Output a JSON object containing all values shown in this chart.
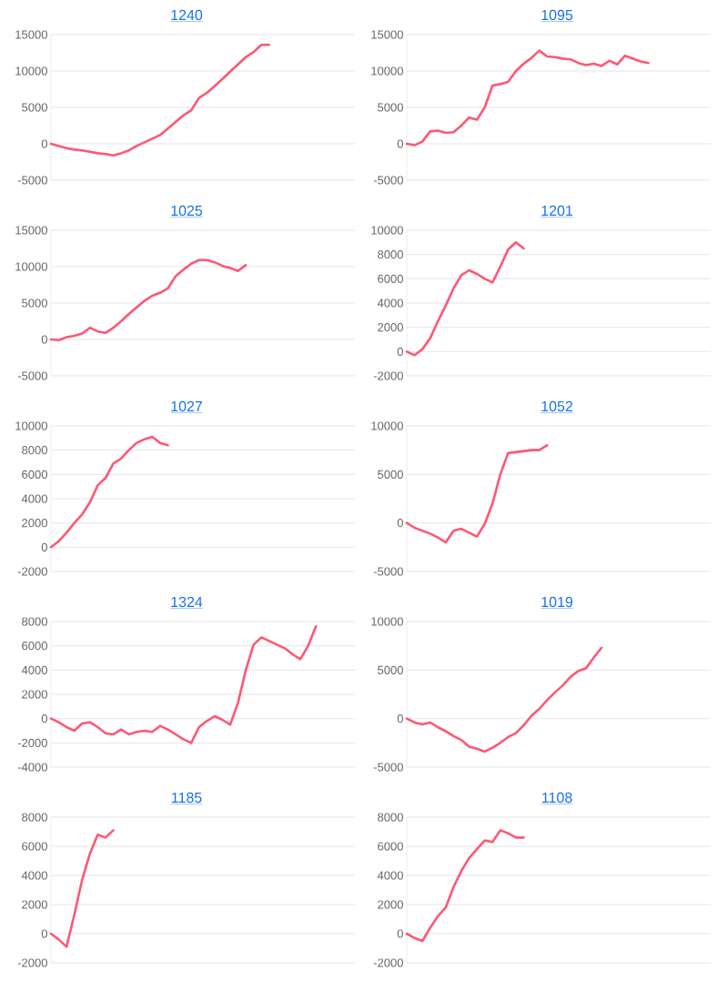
{
  "chart_data": [
    {
      "type": "line",
      "title": "1240",
      "color": "#ff5773",
      "grid": "y",
      "ylim": [
        -5000,
        15000
      ],
      "yticks": [
        -5000,
        0,
        5000,
        10000,
        15000
      ],
      "categories": [
        null,
        null,
        null,
        null,
        null,
        null,
        null,
        null,
        null,
        null,
        null,
        null,
        null,
        null,
        null,
        null,
        null,
        null,
        null,
        null,
        null,
        null,
        null,
        null,
        null,
        null,
        null,
        null,
        null,
        null,
        null,
        null,
        null,
        null,
        null,
        null,
        null,
        null,
        null,
        null
      ],
      "values": [
        0,
        -300,
        -600,
        -800,
        -900,
        -1100,
        -1300,
        -1400,
        -1600,
        -1300,
        -900,
        -300,
        200,
        700,
        1200,
        2100,
        3000,
        3900,
        4600,
        6300,
        7000,
        7900,
        8900,
        9900,
        10900,
        11900,
        12600,
        13600,
        13600,
        null,
        null,
        null,
        null,
        null,
        null,
        null,
        null,
        null,
        null,
        null
      ]
    },
    {
      "type": "line",
      "title": "1095",
      "color": "#ff5773",
      "grid": "y",
      "ylim": [
        -5000,
        15000
      ],
      "yticks": [
        -5000,
        0,
        5000,
        10000,
        15000
      ],
      "categories": [
        null,
        null,
        null,
        null,
        null,
        null,
        null,
        null,
        null,
        null,
        null,
        null,
        null,
        null,
        null,
        null,
        null,
        null,
        null,
        null,
        null,
        null,
        null,
        null,
        null,
        null,
        null,
        null,
        null,
        null,
        null,
        null,
        null,
        null,
        null,
        null,
        null,
        null,
        null,
        null
      ],
      "values": [
        0,
        -200,
        300,
        1700,
        1800,
        1500,
        1600,
        2500,
        3600,
        3300,
        5000,
        8000,
        8200,
        8500,
        10000,
        11000,
        11800,
        12800,
        12000,
        11900,
        11700,
        11600,
        11100,
        10800,
        11000,
        10700,
        11400,
        10900,
        12100,
        11700,
        11300,
        11100,
        null,
        null,
        null,
        null,
        null,
        null,
        null,
        null
      ]
    },
    {
      "type": "line",
      "title": "1025",
      "color": "#ff5773",
      "grid": "y",
      "ylim": [
        -5000,
        15000
      ],
      "yticks": [
        -5000,
        0,
        5000,
        10000,
        15000
      ],
      "categories": [
        null,
        null,
        null,
        null,
        null,
        null,
        null,
        null,
        null,
        null,
        null,
        null,
        null,
        null,
        null,
        null,
        null,
        null,
        null,
        null,
        null,
        null,
        null,
        null,
        null,
        null,
        null,
        null,
        null,
        null,
        null,
        null,
        null,
        null,
        null,
        null,
        null,
        null,
        null,
        null
      ],
      "values": [
        0,
        -100,
        300,
        500,
        800,
        1600,
        1100,
        900,
        1600,
        2500,
        3500,
        4400,
        5300,
        6000,
        6400,
        7000,
        8700,
        9600,
        10400,
        10900,
        10900,
        10600,
        10100,
        9800,
        9400,
        10200,
        null,
        null,
        null,
        null,
        null,
        null,
        null,
        null,
        null,
        null,
        null,
        null,
        null,
        null
      ]
    },
    {
      "type": "line",
      "title": "1201",
      "color": "#ff5773",
      "grid": "y",
      "ylim": [
        -2000,
        10000
      ],
      "yticks": [
        -2000,
        0,
        2000,
        4000,
        6000,
        8000,
        10000
      ],
      "categories": [
        null,
        null,
        null,
        null,
        null,
        null,
        null,
        null,
        null,
        null,
        null,
        null,
        null,
        null,
        null,
        null,
        null,
        null,
        null,
        null,
        null,
        null,
        null,
        null,
        null,
        null,
        null,
        null,
        null,
        null,
        null,
        null,
        null,
        null,
        null,
        null,
        null,
        null,
        null,
        null
      ],
      "values": [
        0,
        -300,
        200,
        1100,
        2500,
        3800,
        5200,
        6300,
        6700,
        6400,
        6000,
        5700,
        7000,
        8400,
        9000,
        8500,
        null,
        null,
        null,
        null,
        null,
        null,
        null,
        null,
        null,
        null,
        null,
        null,
        null,
        null,
        null,
        null,
        null,
        null,
        null,
        null,
        null,
        null,
        null,
        null
      ]
    },
    {
      "type": "line",
      "title": "1027",
      "color": "#ff5773",
      "grid": "y",
      "ylim": [
        -2000,
        10000
      ],
      "yticks": [
        -2000,
        0,
        2000,
        4000,
        6000,
        8000,
        10000
      ],
      "categories": [
        null,
        null,
        null,
        null,
        null,
        null,
        null,
        null,
        null,
        null,
        null,
        null,
        null,
        null,
        null,
        null,
        null,
        null,
        null,
        null,
        null,
        null,
        null,
        null,
        null,
        null,
        null,
        null,
        null,
        null,
        null,
        null,
        null,
        null,
        null,
        null,
        null,
        null,
        null,
        null
      ],
      "values": [
        0,
        500,
        1200,
        2000,
        2700,
        3700,
        5100,
        5700,
        6900,
        7300,
        8000,
        8600,
        8900,
        9100,
        8600,
        8400,
        null,
        null,
        null,
        null,
        null,
        null,
        null,
        null,
        null,
        null,
        null,
        null,
        null,
        null,
        null,
        null,
        null,
        null,
        null,
        null,
        null,
        null,
        null,
        null
      ]
    },
    {
      "type": "line",
      "title": "1052",
      "color": "#ff5773",
      "grid": "y",
      "ylim": [
        -5000,
        10000
      ],
      "yticks": [
        -5000,
        0,
        5000,
        10000
      ],
      "categories": [
        null,
        null,
        null,
        null,
        null,
        null,
        null,
        null,
        null,
        null,
        null,
        null,
        null,
        null,
        null,
        null,
        null,
        null,
        null,
        null,
        null,
        null,
        null,
        null,
        null,
        null,
        null,
        null,
        null,
        null,
        null,
        null,
        null,
        null,
        null,
        null,
        null,
        null,
        null,
        null
      ],
      "values": [
        0,
        -500,
        -800,
        -1100,
        -1500,
        -2000,
        -800,
        -600,
        -1000,
        -1400,
        -100,
        2000,
        5000,
        7200,
        7300,
        7400,
        7500,
        7500,
        8000,
        null,
        null,
        null,
        null,
        null,
        null,
        null,
        null,
        null,
        null,
        null,
        null,
        null,
        null,
        null,
        null,
        null,
        null,
        null,
        null,
        null
      ]
    },
    {
      "type": "line",
      "title": "1324",
      "color": "#ff5773",
      "grid": "y",
      "ylim": [
        -4000,
        8000
      ],
      "yticks": [
        -4000,
        -2000,
        0,
        2000,
        4000,
        6000,
        8000
      ],
      "categories": [
        null,
        null,
        null,
        null,
        null,
        null,
        null,
        null,
        null,
        null,
        null,
        null,
        null,
        null,
        null,
        null,
        null,
        null,
        null,
        null,
        null,
        null,
        null,
        null,
        null,
        null,
        null,
        null,
        null,
        null,
        null,
        null,
        null,
        null,
        null,
        null,
        null,
        null,
        null,
        null
      ],
      "values": [
        0,
        -300,
        -700,
        -1000,
        -400,
        -300,
        -700,
        -1200,
        -1300,
        -900,
        -1300,
        -1100,
        -1000,
        -1100,
        -600,
        -900,
        -1300,
        -1700,
        -2000,
        -700,
        -200,
        200,
        -100,
        -500,
        1300,
        4000,
        6100,
        6700,
        6400,
        6100,
        5800,
        5300,
        4900,
        6000,
        7600,
        null,
        null,
        null,
        null,
        null
      ]
    },
    {
      "type": "line",
      "title": "1019",
      "color": "#ff5773",
      "grid": "y",
      "ylim": [
        -5000,
        10000
      ],
      "yticks": [
        -5000,
        0,
        5000,
        10000
      ],
      "categories": [
        null,
        null,
        null,
        null,
        null,
        null,
        null,
        null,
        null,
        null,
        null,
        null,
        null,
        null,
        null,
        null,
        null,
        null,
        null,
        null,
        null,
        null,
        null,
        null,
        null,
        null,
        null,
        null,
        null,
        null,
        null,
        null,
        null,
        null,
        null,
        null,
        null,
        null,
        null,
        null
      ],
      "values": [
        0,
        -400,
        -600,
        -400,
        -900,
        -1300,
        -1800,
        -2200,
        -2900,
        -3100,
        -3400,
        -3000,
        -2500,
        -1900,
        -1500,
        -700,
        300,
        1000,
        1900,
        2700,
        3400,
        4300,
        4900,
        5200,
        6300,
        7300,
        null,
        null,
        null,
        null,
        null,
        null,
        null,
        null,
        null,
        null,
        null,
        null,
        null,
        null
      ]
    },
    {
      "type": "line",
      "title": "1185",
      "color": "#ff5773",
      "grid": "y",
      "ylim": [
        -2000,
        8000
      ],
      "yticks": [
        -2000,
        0,
        2000,
        4000,
        6000,
        8000
      ],
      "categories": [
        null,
        null,
        null,
        null,
        null,
        null,
        null,
        null,
        null,
        null,
        null,
        null,
        null,
        null,
        null,
        null,
        null,
        null,
        null,
        null,
        null,
        null,
        null,
        null,
        null,
        null,
        null,
        null,
        null,
        null,
        null,
        null,
        null,
        null,
        null,
        null,
        null,
        null,
        null,
        null
      ],
      "values": [
        0,
        -400,
        -900,
        1300,
        3700,
        5500,
        6800,
        6600,
        7100,
        null,
        null,
        null,
        null,
        null,
        null,
        null,
        null,
        null,
        null,
        null,
        null,
        null,
        null,
        null,
        null,
        null,
        null,
        null,
        null,
        null,
        null,
        null,
        null,
        null,
        null,
        null,
        null,
        null,
        null,
        null
      ]
    },
    {
      "type": "line",
      "title": "1108",
      "color": "#ff5773",
      "grid": "y",
      "ylim": [
        -2000,
        8000
      ],
      "yticks": [
        -2000,
        0,
        2000,
        4000,
        6000,
        8000
      ],
      "categories": [
        null,
        null,
        null,
        null,
        null,
        null,
        null,
        null,
        null,
        null,
        null,
        null,
        null,
        null,
        null,
        null,
        null,
        null,
        null,
        null,
        null,
        null,
        null,
        null,
        null,
        null,
        null,
        null,
        null,
        null,
        null,
        null,
        null,
        null,
        null,
        null,
        null,
        null,
        null,
        null
      ],
      "values": [
        0,
        -300,
        -500,
        400,
        1200,
        1800,
        3200,
        4300,
        5200,
        5800,
        6400,
        6300,
        7100,
        6900,
        6600,
        6600,
        null,
        null,
        null,
        null,
        null,
        null,
        null,
        null,
        null,
        null,
        null,
        null,
        null,
        null,
        null,
        null,
        null,
        null,
        null,
        null,
        null,
        null,
        null,
        null
      ]
    }
  ]
}
